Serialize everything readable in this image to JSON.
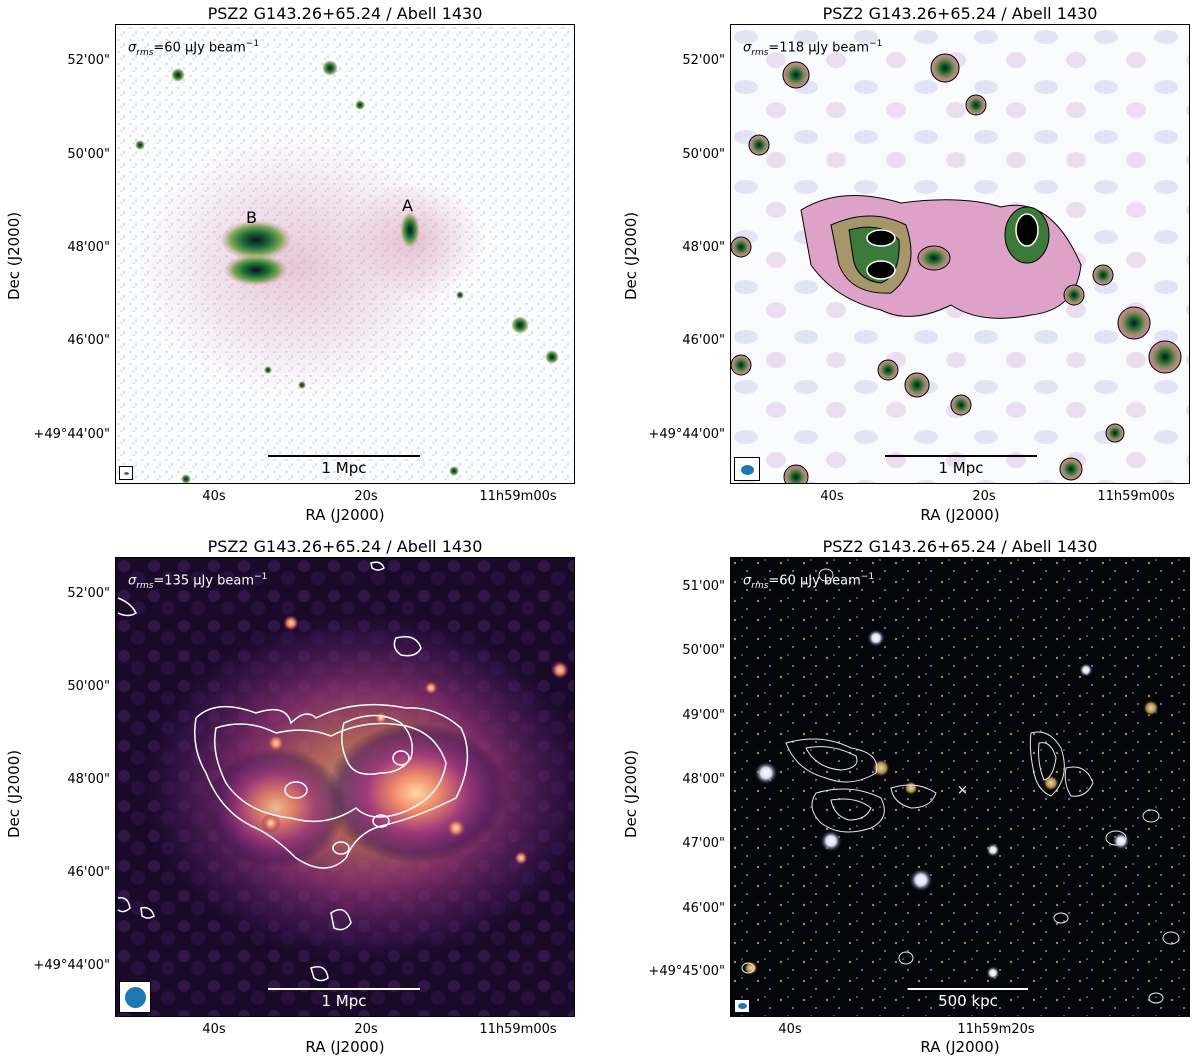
{
  "figure": {
    "panels": [
      {
        "title": "PSZ2 G143.26+65.24 / Abell 1430",
        "sigma_prefix": "σ",
        "sigma_sub": "rms",
        "sigma_value": "=60 μJy beam",
        "sigma_sup": "−1",
        "y_ticks": [
          "52'00\"",
          "50'00\"",
          "48'00\"",
          "46'00\"",
          "+49°44'00\""
        ],
        "x_ticks": [
          "40s",
          "20s",
          "11h59m00s"
        ],
        "xlabel": "RA (J2000)",
        "ylabel": "Dec (J2000)",
        "scalebar_label": "1 Mpc",
        "markers": [
          "A",
          "B"
        ]
      },
      {
        "title": "PSZ2 G143.26+65.24 / Abell 1430",
        "sigma_prefix": "σ",
        "sigma_sub": "rms",
        "sigma_value": "=118 μJy beam",
        "sigma_sup": "−1",
        "y_ticks": [
          "52'00\"",
          "50'00\"",
          "48'00\"",
          "46'00\"",
          "+49°44'00\""
        ],
        "x_ticks": [
          "40s",
          "20s",
          "11h59m00s"
        ],
        "xlabel": "RA (J2000)",
        "ylabel": "Dec (J2000)",
        "scalebar_label": "1 Mpc"
      },
      {
        "title": "PSZ2 G143.26+65.24 / Abell 1430",
        "sigma_prefix": "σ",
        "sigma_sub": "rms",
        "sigma_value": "=135 μJy beam",
        "sigma_sup": "−1",
        "y_ticks": [
          "52'00\"",
          "50'00\"",
          "48'00\"",
          "46'00\"",
          "+49°44'00\""
        ],
        "x_ticks": [
          "40s",
          "20s",
          "11h59m00s"
        ],
        "xlabel": "RA (J2000)",
        "ylabel": "Dec (J2000)",
        "scalebar_label": "1 Mpc"
      },
      {
        "title": "PSZ2 G143.26+65.24 / Abell 1430",
        "sigma_prefix": "σ",
        "sigma_sub": "rms",
        "sigma_value": "=60 μJy beam",
        "sigma_sup": "−1",
        "y_ticks": [
          "51'00\"",
          "50'00\"",
          "49'00\"",
          "48'00\"",
          "47'00\"",
          "46'00\"",
          "+49°45'00\""
        ],
        "x_ticks": [
          "40s",
          "11h59m20s"
        ],
        "xlabel": "RA (J2000)",
        "ylabel": "Dec (J2000)",
        "scalebar_label": "500 kpc"
      }
    ]
  }
}
